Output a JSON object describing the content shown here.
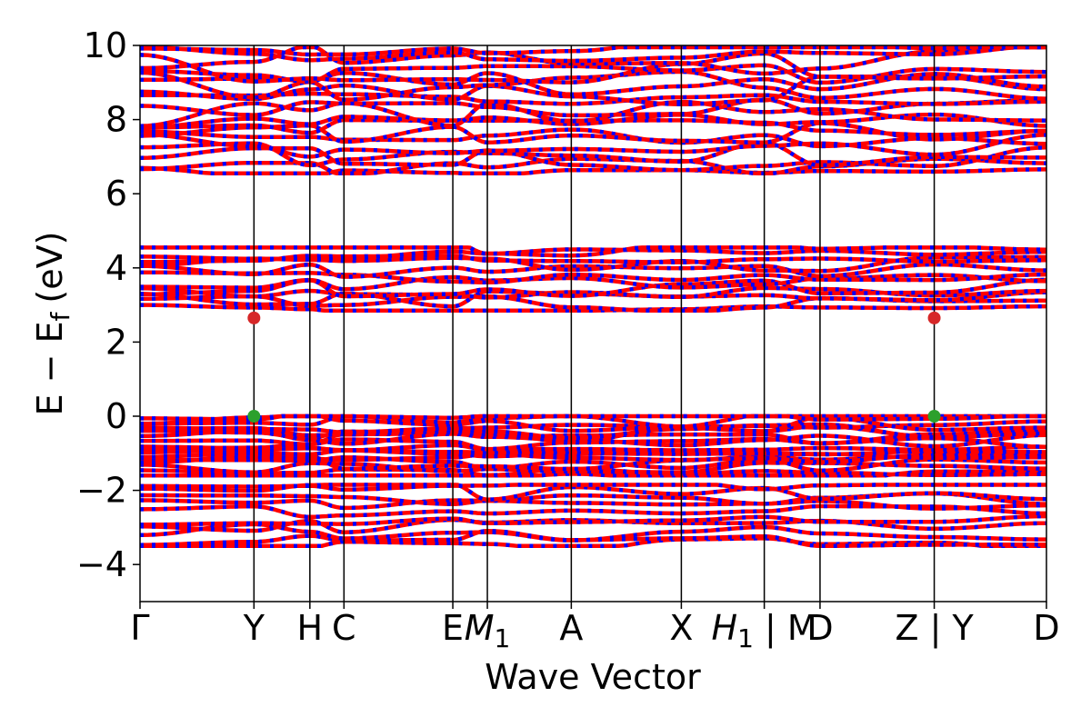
{
  "chart_data": {
    "type": "line",
    "title": "",
    "xlabel": "Wave Vector",
    "ylabel_main": "E − E",
    "ylabel_sub": "f",
    "ylabel_unit": "(eV)",
    "ylim": [
      -5,
      10
    ],
    "yticks": [
      {
        "value": -4,
        "label": "−4"
      },
      {
        "value": -2,
        "label": "−2"
      },
      {
        "value": 0,
        "label": "0"
      },
      {
        "value": 2,
        "label": "2"
      },
      {
        "value": 4,
        "label": "4"
      },
      {
        "value": 6,
        "label": "6"
      },
      {
        "value": 8,
        "label": "8"
      },
      {
        "value": 10,
        "label": "10"
      }
    ],
    "xlim": [
      0,
      1
    ],
    "kpoints": [
      {
        "pos": 0.0,
        "label": "Γ"
      },
      {
        "pos": 0.1257,
        "label": "Y"
      },
      {
        "pos": 0.1874,
        "label": "H"
      },
      {
        "pos": 0.225,
        "label": "C"
      },
      {
        "pos": 0.3451,
        "label": "E"
      },
      {
        "pos": 0.3832,
        "label": "M1"
      },
      {
        "pos": 0.4758,
        "label": "A"
      },
      {
        "pos": 0.5972,
        "label": "X"
      },
      {
        "pos": 0.6887,
        "label": "H1 | M"
      },
      {
        "pos": 0.7502,
        "label": "D"
      },
      {
        "pos": 0.8762,
        "label": "Z | Y"
      },
      {
        "pos": 1.0,
        "label": "D"
      }
    ],
    "highlight_points": [
      {
        "x": 0.1257,
        "y": 2.65,
        "color": "#d62728"
      },
      {
        "x": 0.1257,
        "y": 0.0,
        "color": "#2ca02c"
      },
      {
        "x": 0.8762,
        "y": 2.65,
        "color": "#d62728"
      },
      {
        "x": 0.8762,
        "y": 0.0,
        "color": "#2ca02c"
      }
    ],
    "series_colors": [
      "#ff0000",
      "#0000ff"
    ],
    "band_groups": [
      {
        "name": "upper conduction",
        "yfrom": 6.55,
        "yto": 9.95,
        "count": 20
      },
      {
        "name": "lower conduction",
        "yfrom": 2.85,
        "yto": 4.55,
        "count": 12
      },
      {
        "name": "valence top",
        "yfrom": -1.6,
        "yto": 0.0,
        "count": 18
      },
      {
        "name": "valence lower",
        "yfrom": -3.5,
        "yto": -1.85,
        "count": 10
      }
    ]
  }
}
